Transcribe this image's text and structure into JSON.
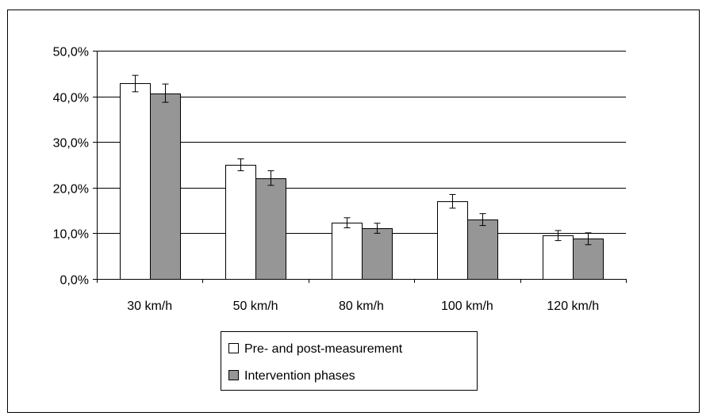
{
  "chart_data": {
    "type": "bar",
    "title": "",
    "xlabel": "",
    "ylabel": "",
    "categories": [
      "30 km/h",
      "50 km/h",
      "80 km/h",
      "100 km/h",
      "120 km/h"
    ],
    "series": [
      {
        "name": "Pre- and post-measurement",
        "color": "#ffffff",
        "values": [
          42.8,
          25.0,
          12.3,
          17.0,
          9.5
        ],
        "error": [
          1.8,
          1.3,
          1.1,
          1.5,
          1.1
        ]
      },
      {
        "name": "Intervention phases",
        "color": "#969696",
        "values": [
          40.7,
          22.1,
          11.1,
          13.0,
          8.8
        ],
        "error": [
          2.0,
          1.6,
          1.1,
          1.3,
          1.3
        ]
      }
    ],
    "ylim": [
      0,
      50
    ],
    "yticks": [
      0,
      10,
      20,
      30,
      40,
      50
    ],
    "ytick_labels": [
      "0,0%",
      "10,0%",
      "20,0%",
      "30,0%",
      "40,0%",
      "50,0%"
    ],
    "grid": true,
    "legend_position": "bottom"
  }
}
